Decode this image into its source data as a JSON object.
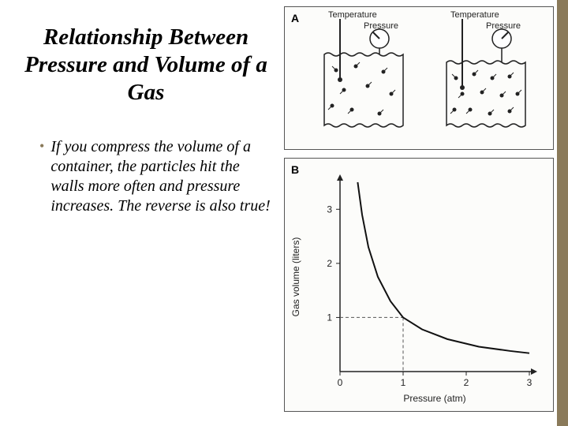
{
  "title": "Relationship Between Pressure and Volume of a Gas",
  "bullet": "If you compress the volume of a container, the particles hit the walls more often and pressure increases. The reverse is also true!",
  "figureA": {
    "label": "A",
    "left_temp": "Temperature",
    "left_pressure": "Pressure",
    "right_temp": "Temperature",
    "right_pressure": "Pressure",
    "particle_color": "#222222",
    "box_stroke": "#222222",
    "gauge_stroke": "#222222"
  },
  "figureB": {
    "label": "B",
    "ylabel": "Gas volume (liters)",
    "xlabel": "Pressure (atm)",
    "xlim": [
      0,
      3
    ],
    "ylim": [
      0,
      3.5
    ],
    "xticks": [
      0,
      1,
      2,
      3
    ],
    "yticks": [
      1,
      2,
      3
    ],
    "curve": [
      [
        0.28,
        3.5
      ],
      [
        0.35,
        2.9
      ],
      [
        0.45,
        2.3
      ],
      [
        0.6,
        1.75
      ],
      [
        0.8,
        1.3
      ],
      [
        1.0,
        1.0
      ],
      [
        1.3,
        0.78
      ],
      [
        1.7,
        0.6
      ],
      [
        2.2,
        0.46
      ],
      [
        2.7,
        0.38
      ],
      [
        3.0,
        0.34
      ]
    ],
    "dash_point": [
      1.0,
      1.0
    ],
    "axis_color": "#222222",
    "curve_color": "#111111",
    "dash_color": "#555555",
    "tick_fontsize": 12,
    "label_fontsize": 12
  },
  "accent_color": "#8a7a5a"
}
